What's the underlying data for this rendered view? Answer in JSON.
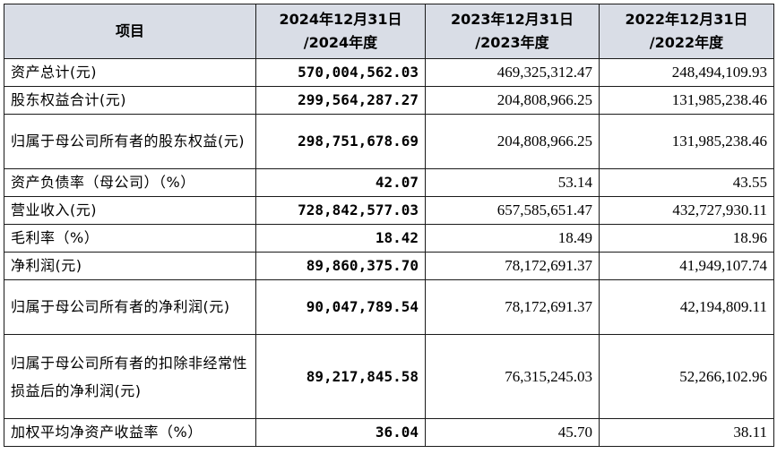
{
  "header": {
    "item": "项目",
    "col2024": "2024年12月31日\n/2024年度",
    "col2023": "2023年12月31日\n/2023年度",
    "col2022": "2022年12月31日\n/2022年度"
  },
  "rows": [
    {
      "label": "资产总计(元)",
      "v2024": "570,004,562.03",
      "v2023": "469,325,312.47",
      "v2022": "248,494,109.93"
    },
    {
      "label": "股东权益合计(元)",
      "v2024": "299,564,287.27",
      "v2023": "204,808,966.25",
      "v2022": "131,985,238.46"
    },
    {
      "label": "归属于母公司所有者的股东权益(元)",
      "v2024": "298,751,678.69",
      "v2023": "204,808,966.25",
      "v2022": "131,985,238.46"
    },
    {
      "label": "资产负债率（母公司）（%）",
      "v2024": "42.07",
      "v2023": "53.14",
      "v2022": "43.55"
    },
    {
      "label": "营业收入(元)",
      "v2024": "728,842,577.03",
      "v2023": "657,585,651.47",
      "v2022": "432,727,930.11"
    },
    {
      "label": "毛利率（%）",
      "v2024": "18.42",
      "v2023": "18.49",
      "v2022": "18.96"
    },
    {
      "label": "净利润(元)",
      "v2024": "89,860,375.70",
      "v2023": "78,172,691.37",
      "v2022": "41,949,107.74"
    },
    {
      "label": "归属于母公司所有者的净利润(元)",
      "v2024": "90,047,789.54",
      "v2023": "78,172,691.37",
      "v2022": "42,194,809.11"
    },
    {
      "label": "归属于母公司所有者的扣除非经常性损益后的净利润(元)",
      "v2024": "89,217,845.58",
      "v2023": "76,315,245.03",
      "v2022": "52,266,102.96"
    },
    {
      "label": "加权平均净资产收益率（%）",
      "v2024": "36.04",
      "v2023": "45.70",
      "v2022": "38.11"
    }
  ]
}
